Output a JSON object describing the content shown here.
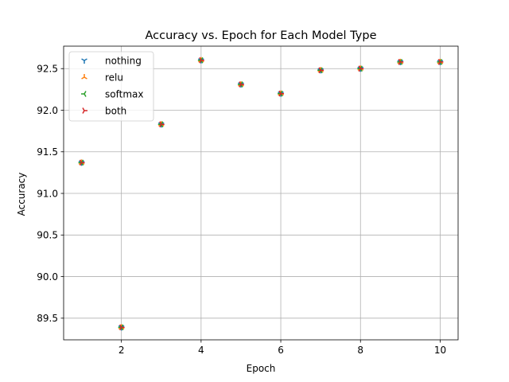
{
  "chart_data": {
    "type": "scatter",
    "title": "Accuracy vs. Epoch for Each Model Type",
    "xlabel": "Epoch",
    "ylabel": "Accuracy",
    "xlim": [
      0.55,
      10.45
    ],
    "ylim": [
      89.24,
      92.77
    ],
    "xticks": [
      2,
      4,
      6,
      8,
      10
    ],
    "yticks": [
      89.5,
      90.0,
      90.5,
      91.0,
      91.5,
      92.0,
      92.5
    ],
    "ytick_labels": [
      "89.5",
      "90.0",
      "90.5",
      "91.0",
      "91.5",
      "92.0",
      "92.5"
    ],
    "grid": true,
    "legend_position": "upper-left",
    "x": [
      1,
      2,
      3,
      4,
      5,
      6,
      7,
      8,
      9,
      10
    ],
    "series": [
      {
        "name": "nothing",
        "marker": "tri_down",
        "color": "#1f77b4",
        "values": [
          91.37,
          89.39,
          91.83,
          92.6,
          92.31,
          92.2,
          92.48,
          92.5,
          92.58,
          92.58
        ]
      },
      {
        "name": "relu",
        "marker": "tri_up",
        "color": "#ff7f0e",
        "values": [
          91.37,
          89.39,
          91.83,
          92.6,
          92.31,
          92.2,
          92.48,
          92.5,
          92.58,
          92.58
        ]
      },
      {
        "name": "softmax",
        "marker": "tri_left",
        "color": "#2ca02c",
        "values": [
          91.37,
          89.39,
          91.83,
          92.6,
          92.31,
          92.2,
          92.48,
          92.5,
          92.58,
          92.58
        ]
      },
      {
        "name": "both",
        "marker": "tri_right",
        "color": "#d62728",
        "values": [
          91.37,
          89.39,
          91.83,
          92.6,
          92.31,
          92.2,
          92.48,
          92.5,
          92.58,
          92.58
        ]
      }
    ]
  }
}
